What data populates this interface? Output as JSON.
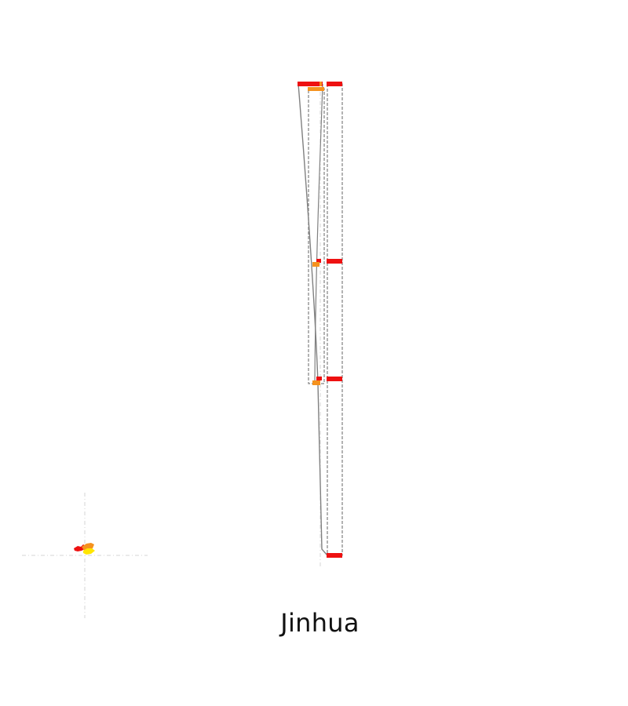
{
  "map": {
    "title": "Jinhua",
    "colors": {
      "background": "#ffffff",
      "frame_stroke": "#808080",
      "guide_stroke": "#d6d6d6",
      "high": "#ee1111",
      "medium": "#f5921e",
      "low": "#ffe600",
      "text": "#111111"
    }
  }
}
